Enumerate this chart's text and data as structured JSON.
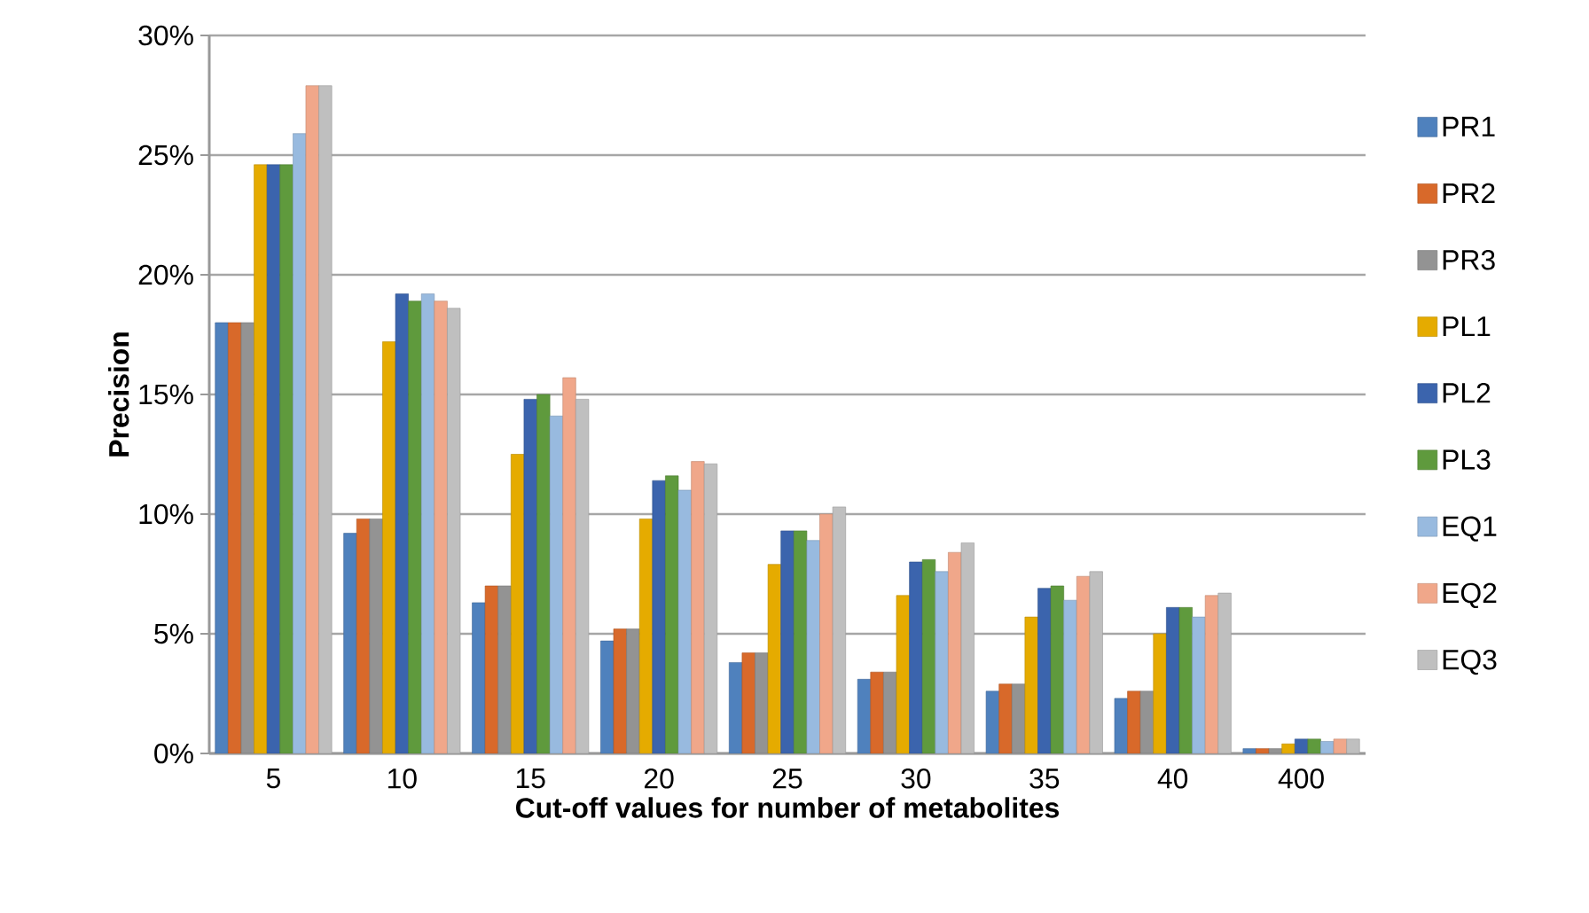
{
  "chart_data": {
    "type": "bar",
    "xlabel": "Cut-off values for number of metabolites",
    "ylabel": "Precision",
    "categories": [
      "5",
      "10",
      "15",
      "20",
      "25",
      "30",
      "35",
      "40",
      "400"
    ],
    "series": [
      {
        "name": "PR1",
        "color": "#4f81bd",
        "values": [
          18.0,
          9.2,
          6.3,
          4.7,
          3.8,
          3.1,
          2.6,
          2.3,
          0.2
        ]
      },
      {
        "name": "PR2",
        "color": "#d8692a",
        "values": [
          18.0,
          9.8,
          7.0,
          5.2,
          4.2,
          3.4,
          2.9,
          2.6,
          0.2
        ]
      },
      {
        "name": "PR3",
        "color": "#939393",
        "values": [
          18.0,
          9.8,
          7.0,
          5.2,
          4.2,
          3.4,
          2.9,
          2.6,
          0.2
        ]
      },
      {
        "name": "PL1",
        "color": "#e5ab00",
        "values": [
          24.6,
          17.2,
          12.5,
          9.8,
          7.9,
          6.6,
          5.7,
          5.0,
          0.4
        ]
      },
      {
        "name": "PL2",
        "color": "#3b64ad",
        "values": [
          24.6,
          19.2,
          14.8,
          11.4,
          9.3,
          8.0,
          6.9,
          6.1,
          0.6
        ]
      },
      {
        "name": "PL3",
        "color": "#5f9a3d",
        "values": [
          24.6,
          18.9,
          15.0,
          11.6,
          9.3,
          8.1,
          7.0,
          6.1,
          0.6
        ]
      },
      {
        "name": "EQ1",
        "color": "#98badf",
        "values": [
          25.9,
          19.2,
          14.1,
          11.0,
          8.9,
          7.6,
          6.4,
          5.7,
          0.5
        ]
      },
      {
        "name": "EQ2",
        "color": "#f0a78a",
        "values": [
          27.9,
          18.9,
          15.7,
          12.2,
          10.0,
          8.4,
          7.4,
          6.6,
          0.6
        ]
      },
      {
        "name": "EQ3",
        "color": "#bfbfbf",
        "values": [
          27.9,
          18.6,
          14.8,
          12.1,
          10.3,
          8.8,
          7.6,
          6.7,
          0.6
        ]
      }
    ],
    "ylim": [
      0,
      30
    ],
    "yticks": [
      {
        "value": 0,
        "label": "0%"
      },
      {
        "value": 5,
        "label": "5%"
      },
      {
        "value": 10,
        "label": "10%"
      },
      {
        "value": 15,
        "label": "15%"
      },
      {
        "value": 20,
        "label": "20%"
      },
      {
        "value": 25,
        "label": "25%"
      },
      {
        "value": 30,
        "label": "30%"
      }
    ],
    "grid": "y",
    "legend": "right"
  }
}
